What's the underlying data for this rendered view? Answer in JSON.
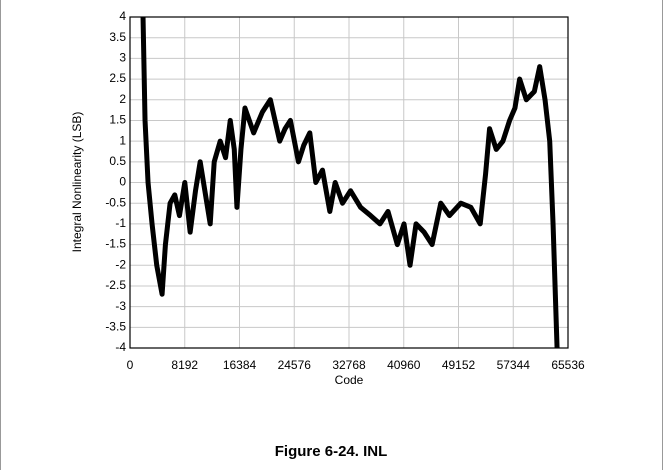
{
  "chart_data": {
    "type": "line",
    "caption": "Figure 6-24. INL",
    "x_label": "Code",
    "y_label": "Integral Nonlinearity (LSB)",
    "x": [
      1950,
      2250,
      2700,
      3300,
      4000,
      4800,
      5300,
      6000,
      6700,
      7400,
      8200,
      9000,
      9800,
      10500,
      11200,
      12000,
      12600,
      13500,
      14300,
      15000,
      15600,
      16000,
      16600,
      17200,
      18500,
      19800,
      21000,
      22400,
      23200,
      24000,
      25200,
      26000,
      26900,
      27800,
      28800,
      29900,
      30700,
      31800,
      33000,
      34500,
      36000,
      37400,
      38600,
      40000,
      41000,
      41900,
      42800,
      44000,
      45200,
      46500,
      47800,
      49500,
      51000,
      52400,
      53200,
      53800,
      54800,
      55800,
      56800,
      57600,
      58300,
      59300,
      60500,
      61300,
      62100,
      62800,
      63300,
      63900
    ],
    "values": [
      4,
      1.5,
      0,
      -1,
      -2,
      -2.7,
      -1.5,
      -0.5,
      -0.3,
      -0.8,
      0,
      -1.2,
      -0.2,
      0.5,
      -0.2,
      -1,
      0.5,
      1,
      0.6,
      1.5,
      0.8,
      -0.6,
      0.8,
      1.8,
      1.2,
      1.7,
      2,
      1,
      1.3,
      1.5,
      0.5,
      0.9,
      1.2,
      0,
      0.3,
      -0.7,
      0,
      -0.5,
      -0.2,
      -0.6,
      -0.8,
      -1,
      -0.7,
      -1.5,
      -1,
      -2,
      -1,
      -1.2,
      -1.5,
      -0.5,
      -0.8,
      -0.5,
      -0.6,
      -1,
      0.2,
      1.3,
      0.8,
      1,
      1.5,
      1.8,
      2.5,
      2,
      2.2,
      2.8,
      2,
      1,
      -1,
      -4
    ],
    "color": "#000000",
    "xlim": [
      0,
      65536
    ],
    "xticks": [
      0,
      8192,
      16384,
      24576,
      32768,
      40960,
      49152,
      57344,
      65536
    ],
    "ylim": [
      -4,
      4
    ],
    "yticks": [
      -4,
      -3.5,
      -3,
      -2.5,
      -2,
      -1.5,
      -1,
      -0.5,
      0,
      0.5,
      1,
      1.5,
      2,
      2.5,
      3,
      3.5,
      4
    ],
    "grid": true
  }
}
